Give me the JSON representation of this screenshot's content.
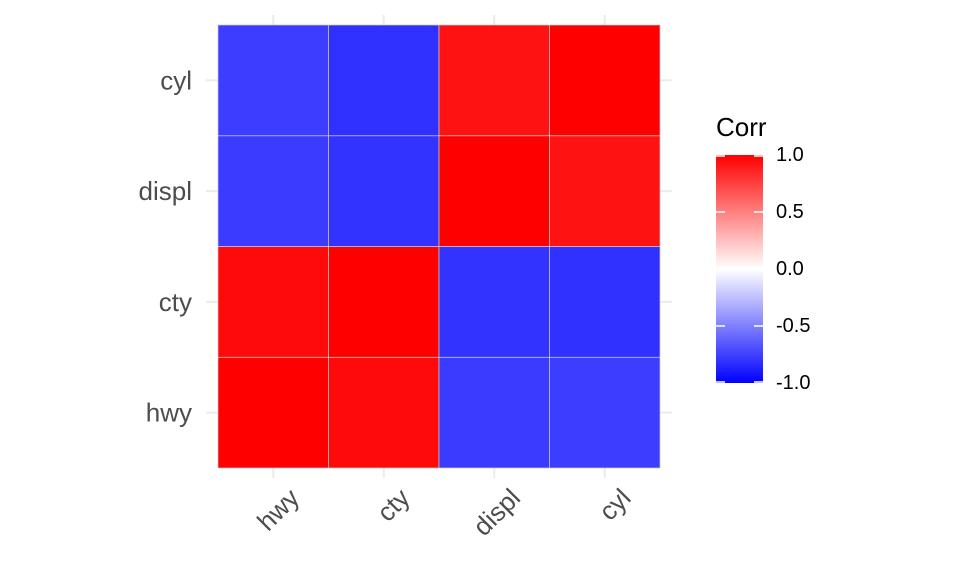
{
  "chart_data": {
    "type": "heatmap",
    "x_categories": [
      "hwy",
      "cty",
      "displ",
      "cyl"
    ],
    "y_categories": [
      "hwy",
      "cty",
      "displ",
      "cyl"
    ],
    "matrix": [
      [
        1.0,
        0.96,
        -0.77,
        -0.76
      ],
      [
        0.96,
        1.0,
        -0.8,
        -0.81
      ],
      [
        -0.77,
        -0.8,
        1.0,
        0.93
      ],
      [
        -0.76,
        -0.81,
        0.93,
        1.0
      ]
    ],
    "legend": {
      "title": "Corr",
      "ticks": [
        1.0,
        0.5,
        0.0,
        -0.5,
        -1.0
      ],
      "tick_labels": [
        "1.0",
        "0.5",
        "0.0",
        "-0.5",
        "-1.0"
      ],
      "range": [
        -1,
        1
      ],
      "placement": "right"
    },
    "colors": {
      "low": "#0000ff",
      "mid": "#ffffff",
      "high": "#ff0000"
    },
    "grid": true
  }
}
